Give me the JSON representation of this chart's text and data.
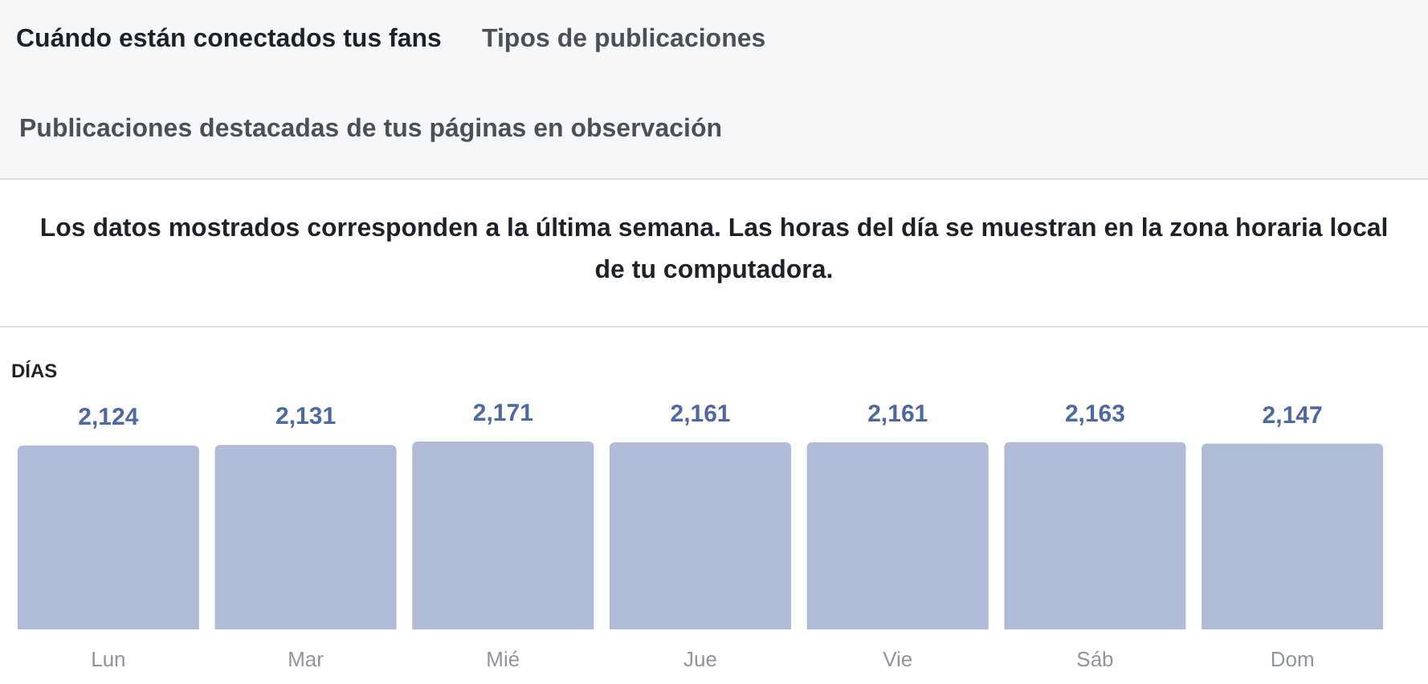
{
  "chart_data": {
    "type": "bar",
    "title": "DÍAS",
    "subtitle": "Los datos mostrados corresponden a la última semana. Las horas del día se muestran en la zona horaria local de tu computadora.",
    "annotations": [
      "Cuándo están conectados tus fans",
      "Tipos de publicaciones",
      "Publicaciones destacadas de tus páginas en observación"
    ],
    "categories": [
      "Lun",
      "Mar",
      "Mié",
      "Jue",
      "Vie",
      "Sáb",
      "Dom"
    ],
    "values": [
      2124,
      2131,
      2171,
      2161,
      2161,
      2163,
      2147
    ],
    "value_labels": [
      "2,124",
      "2,131",
      "2,171",
      "2,161",
      "2,161",
      "2,163",
      "2,147"
    ],
    "color": "#b0bbd7"
  }
}
